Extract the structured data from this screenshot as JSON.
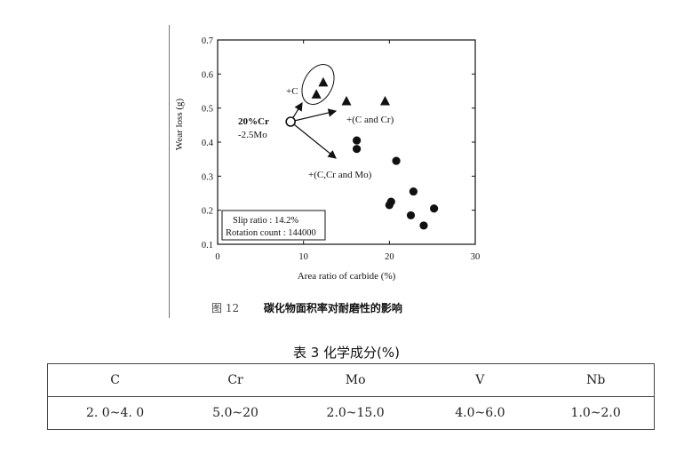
{
  "chart_data": {
    "type": "scatter",
    "xlabel": "Area ratio of carbide  (%)",
    "ylabel": "Wear  loss  (g)",
    "xlim": [
      0,
      30
    ],
    "ylim": [
      0.1,
      0.7
    ],
    "xticks": [
      "0",
      "10",
      "20",
      "30"
    ],
    "yticks": [
      "0.1",
      "0.2",
      "0.3",
      "0.4",
      "0.5",
      "0.6",
      "0.7"
    ],
    "origin_point": {
      "x": 8.5,
      "y": 0.46,
      "label_line1": "20%Cr",
      "label_line2": "-2.5Mo"
    },
    "series": [
      {
        "marker": "triangle",
        "points": [
          [
            11.5,
            0.54
          ],
          [
            12.3,
            0.575
          ],
          [
            15.0,
            0.52
          ],
          [
            19.5,
            0.52
          ]
        ]
      },
      {
        "marker": "circle",
        "points": [
          [
            16.2,
            0.405
          ],
          [
            16.2,
            0.38
          ],
          [
            20.8,
            0.345
          ],
          [
            20.2,
            0.225
          ],
          [
            20.0,
            0.215
          ],
          [
            22.8,
            0.255
          ],
          [
            22.5,
            0.185
          ],
          [
            24.0,
            0.155
          ],
          [
            25.2,
            0.205
          ]
        ]
      }
    ],
    "annotations": [
      "+C",
      "+(C and Cr)",
      "+(C,Cr and Mo)"
    ],
    "info_box": [
      "Slip ratio :    14.2%",
      "Rotation count :  144000"
    ]
  },
  "figure": {
    "number": "图 12",
    "title": "碳化物面积率对耐磨性的影响"
  },
  "table": {
    "title": "表 3   化学成分(%)",
    "headers": [
      "C",
      "Cr",
      "Mo",
      "V",
      "Nb"
    ],
    "values": [
      "2. 0~4. 0",
      "5.0~20",
      "2.0~15.0",
      "4.0~6.0",
      "1.0~2.0"
    ]
  }
}
